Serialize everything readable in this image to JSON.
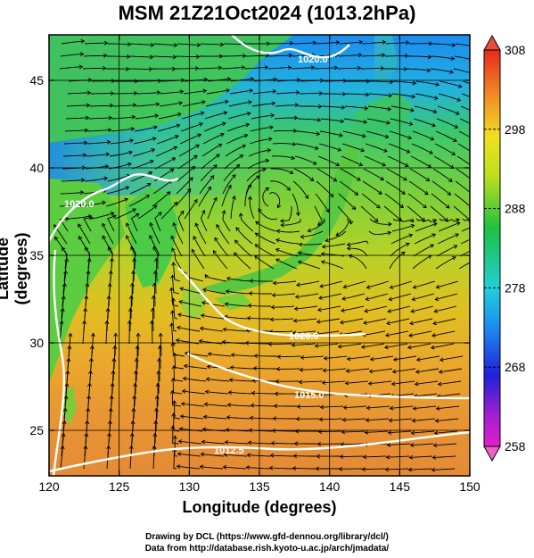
{
  "title": "MSM 21Z21Oct2024 (1013.2hPa)",
  "axes": {
    "xlabel": "Longitude (degrees)",
    "ylabel": "Latitude  (degrees)",
    "x_ticks": [
      120,
      125,
      130,
      135,
      140,
      145,
      150
    ],
    "y_ticks": [
      25,
      30,
      35,
      40,
      45
    ],
    "xlim": [
      120,
      150
    ],
    "ylim": [
      22.4,
      47.6
    ]
  },
  "colorbar": {
    "ticks": [
      258,
      268,
      278,
      288,
      298,
      308
    ],
    "range": [
      258,
      308
    ]
  },
  "contour_labels": [
    "1020.0",
    "1020.0",
    "1020.0",
    "1015.0",
    "1012.5"
  ],
  "credits": {
    "line1": "Drawing by DCL (https://www.gfd-dennou.org/library/dcl/)",
    "line2": "Data from http://database.rish.kyoto-u.ac.jp/arch/jmadata/"
  },
  "colors": {
    "sea_warm": "#e8a23a",
    "sea_cool": "#2fa8e8",
    "land_green": "#3ec84a",
    "contour": "#ffffff",
    "streamline": "#000000"
  }
}
